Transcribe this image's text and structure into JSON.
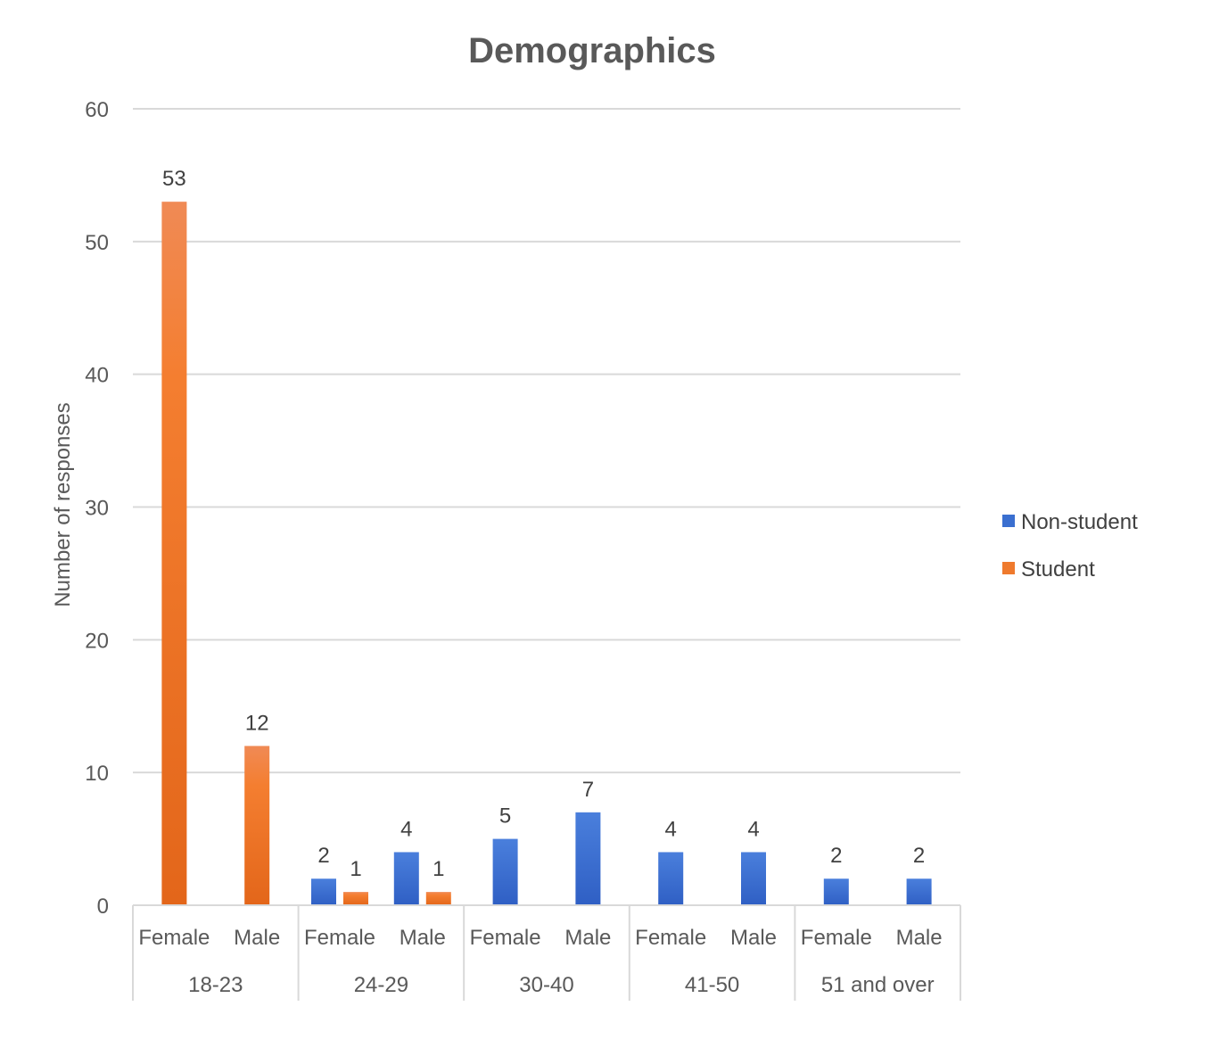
{
  "chart_data": {
    "type": "bar",
    "title": "Demographics",
    "xlabel": "",
    "ylabel": "Number of responses",
    "ylim": [
      0,
      60
    ],
    "yticks": [
      0,
      10,
      20,
      30,
      40,
      50,
      60
    ],
    "grid": true,
    "legend_position": "right",
    "groups": [
      {
        "label": "18-23",
        "categories": [
          "Female",
          "Male"
        ]
      },
      {
        "label": "24-29",
        "categories": [
          "Female",
          "Male"
        ]
      },
      {
        "label": "30-40",
        "categories": [
          "Female",
          "Male"
        ]
      },
      {
        "label": "41-50",
        "categories": [
          "Female",
          "Male"
        ]
      },
      {
        "label": "51 and over",
        "categories": [
          "Female",
          "Male"
        ]
      }
    ],
    "series": [
      {
        "name": "Non-student",
        "color": "#3a6fd0",
        "values": [
          null,
          null,
          2,
          4,
          5,
          7,
          4,
          4,
          2,
          2
        ]
      },
      {
        "name": "Student",
        "color": "#ef7a2d",
        "values": [
          53,
          12,
          1,
          1,
          null,
          null,
          null,
          null,
          null,
          null
        ]
      }
    ]
  }
}
